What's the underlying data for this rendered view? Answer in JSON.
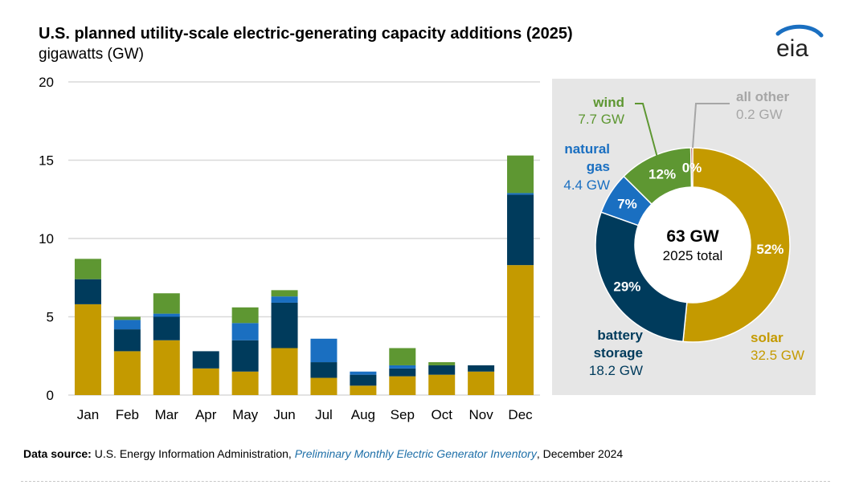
{
  "header": {
    "title": "U.S. planned utility-scale electric-generating capacity additions (2025)",
    "unit": "gigawatts (GW)",
    "logo_text": "eia"
  },
  "colors": {
    "solar": "#c49a00",
    "battery": "#003b5c",
    "gas": "#1a6fc1",
    "wind": "#5e9732",
    "other": "#a33b2a",
    "grid": "#d9d9d9",
    "panel": "#e6e6e6"
  },
  "chart_data": [
    {
      "type": "bar",
      "stacked": true,
      "categories": [
        "Jan",
        "Feb",
        "Mar",
        "Apr",
        "May",
        "Jun",
        "Jul",
        "Aug",
        "Sep",
        "Oct",
        "Nov",
        "Dec"
      ],
      "ylim": [
        0,
        20
      ],
      "yticks": [
        "0",
        "5",
        "10",
        "15",
        "20"
      ],
      "grid": true,
      "series": [
        {
          "key": "solar",
          "values": [
            5.8,
            2.8,
            3.5,
            1.7,
            1.5,
            3.0,
            1.1,
            0.6,
            1.2,
            1.3,
            1.5,
            8.3
          ]
        },
        {
          "key": "battery",
          "values": [
            1.6,
            1.4,
            1.5,
            1.1,
            2.0,
            2.9,
            1.0,
            0.7,
            0.5,
            0.6,
            0.4,
            4.5
          ]
        },
        {
          "key": "gas",
          "values": [
            0.0,
            0.6,
            0.2,
            0.0,
            1.1,
            0.4,
            1.5,
            0.2,
            0.2,
            0.0,
            0.0,
            0.1
          ]
        },
        {
          "key": "wind",
          "values": [
            1.3,
            0.2,
            1.3,
            0.0,
            1.0,
            0.4,
            0.0,
            0.0,
            1.1,
            0.2,
            0.0,
            2.4
          ]
        }
      ]
    },
    {
      "type": "pie",
      "donut": true,
      "center_value": "63 GW",
      "center_label": "2025 total",
      "slices": [
        {
          "key": "solar",
          "name": "solar",
          "value": 32.5,
          "value_label": "32.5 GW",
          "percent": "52%"
        },
        {
          "key": "battery",
          "name": "battery storage",
          "value": 18.2,
          "value_label": "18.2 GW",
          "percent": "29%"
        },
        {
          "key": "gas",
          "name": "natural gas",
          "value": 4.4,
          "value_label": "4.4 GW",
          "percent": "7%"
        },
        {
          "key": "wind",
          "name": "wind",
          "value": 7.7,
          "value_label": "7.7 GW",
          "percent": "12%"
        },
        {
          "key": "other",
          "name": "all other",
          "value": 0.2,
          "value_label": "0.2 GW",
          "percent": "0%"
        }
      ],
      "labels": {
        "wind_name": "wind",
        "wind_value": "7.7 GW",
        "other_name": "all other",
        "other_value": "0.2 GW",
        "gas_name_1": "natural",
        "gas_name_2": "gas",
        "gas_value": "4.4 GW",
        "battery_name_1": "battery",
        "battery_name_2": "storage",
        "battery_value": "18.2 GW",
        "solar_name": "solar",
        "solar_value": "32.5 GW"
      }
    }
  ],
  "footer": {
    "label": "Data source:",
    "text_1": " U.S. Energy Information Administration, ",
    "source_italic": "Preliminary Monthly Electric Generator Inventory",
    "text_2": ", December 2024"
  }
}
